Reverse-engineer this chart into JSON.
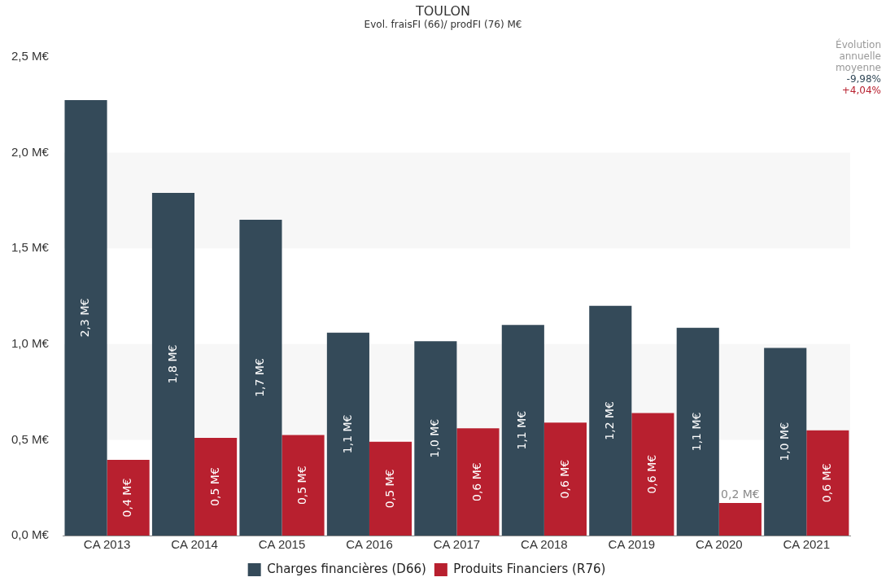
{
  "chart_data": {
    "type": "bar",
    "title": "TOULON",
    "subtitle": "Evol. fraisFI (66)/ prodFI (76) M€",
    "categories": [
      "CA 2013",
      "CA 2014",
      "CA 2015",
      "CA 2016",
      "CA 2017",
      "CA 2018",
      "CA 2019",
      "CA 2020",
      "CA 2021"
    ],
    "series": [
      {
        "name": "Charges financières (D66)",
        "color": "#344a59",
        "values": [
          2.275,
          1.79,
          1.65,
          1.06,
          1.015,
          1.1,
          1.2,
          1.085,
          0.98
        ],
        "value_labels": [
          "2,3 M€",
          "1,8 M€",
          "1,7 M€",
          "1,1 M€",
          "1,0 M€",
          "1,1 M€",
          "1,2 M€",
          "1,1 M€",
          "1,0 M€"
        ]
      },
      {
        "name": "Produits Financiers (R76)",
        "color": "#b8202f",
        "values": [
          0.395,
          0.51,
          0.525,
          0.49,
          0.56,
          0.59,
          0.64,
          0.17,
          0.55
        ],
        "value_labels": [
          "0,4 M€",
          "0,5 M€",
          "0,5 M€",
          "0,5 M€",
          "0,6 M€",
          "0,6 M€",
          "0,6 M€",
          "0,2 M€",
          "0,6 M€"
        ]
      }
    ],
    "ylim": [
      0,
      2.5
    ],
    "yticks": [
      {
        "value": 0,
        "label": "0,0 M€"
      },
      {
        "value": 0.5,
        "label": "0,5 M€"
      },
      {
        "value": 1,
        "label": "1,0 M€"
      },
      {
        "value": 1.5,
        "label": "1,5 M€"
      },
      {
        "value": 2,
        "label": "2,0 M€"
      },
      {
        "value": 2.5,
        "label": "2,5 M€"
      }
    ],
    "legend": "bottom",
    "annotations": [
      "Évolution annuelle moyenne",
      "-9,98%",
      "+4,04%"
    ]
  }
}
